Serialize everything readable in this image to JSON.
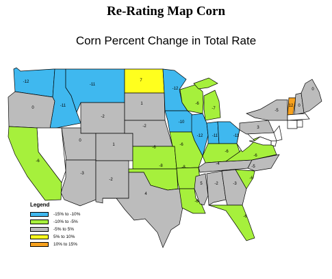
{
  "header": {
    "title": "Re-Rating Map Corn",
    "subtitle": "Corn Percent Change in Total Rate"
  },
  "legend": {
    "title": "Legend",
    "items": [
      {
        "label": "-15% to -10%",
        "color": "#3fb8ef"
      },
      {
        "label": "-10% to -5%",
        "color": "#a6f03c"
      },
      {
        "label": "-5% to 5%",
        "color": "#bcbcbc"
      },
      {
        "label": "5% to 10%",
        "color": "#ffff1e"
      },
      {
        "label": "10% to 15%",
        "color": "#f7a11e"
      }
    ]
  },
  "colors": {
    "no_data": "#ffffff"
  },
  "states": [
    {
      "code": "WA",
      "label": "-12",
      "value": -12
    },
    {
      "code": "OR",
      "label": "0",
      "value": 0
    },
    {
      "code": "ID",
      "label": "-11",
      "value": -11
    },
    {
      "code": "MT",
      "label": "-11",
      "value": -11
    },
    {
      "code": "WY",
      "label": "-2",
      "value": -2
    },
    {
      "code": "NV",
      "label": "",
      "value": null
    },
    {
      "code": "CA",
      "label": "-6",
      "value": -6
    },
    {
      "code": "UT",
      "label": "0",
      "value": 0
    },
    {
      "code": "CO",
      "label": "1",
      "value": 1
    },
    {
      "code": "AZ",
      "label": "-3",
      "value": -3
    },
    {
      "code": "NM",
      "label": "-2",
      "value": -2
    },
    {
      "code": "ND",
      "label": "7",
      "value": 7
    },
    {
      "code": "SD",
      "label": "1",
      "value": 1
    },
    {
      "code": "NE",
      "label": "-2",
      "value": -2
    },
    {
      "code": "KS",
      "label": "-6",
      "value": -6
    },
    {
      "code": "OK",
      "label": "-8",
      "value": -8
    },
    {
      "code": "TX",
      "label": "4",
      "value": 4
    },
    {
      "code": "MN",
      "label": "-12",
      "value": -12
    },
    {
      "code": "IA",
      "label": "-10",
      "value": -10
    },
    {
      "code": "MO",
      "label": "-6",
      "value": -6
    },
    {
      "code": "AR",
      "label": "-8",
      "value": -8
    },
    {
      "code": "LA",
      "label": "-6",
      "value": -6
    },
    {
      "code": "WI",
      "label": "-6",
      "value": -6
    },
    {
      "code": "IL",
      "label": "-12",
      "value": -12
    },
    {
      "code": "MI",
      "label": "-7",
      "value": -7
    },
    {
      "code": "IN",
      "label": "-11",
      "value": -11
    },
    {
      "code": "OH",
      "label": "-11",
      "value": -11
    },
    {
      "code": "KY",
      "label": "-6",
      "value": -6
    },
    {
      "code": "TN",
      "label": "-4",
      "value": -4
    },
    {
      "code": "MS",
      "label": "5",
      "value": 5
    },
    {
      "code": "AL",
      "label": "-2",
      "value": -2
    },
    {
      "code": "GA",
      "label": "-3",
      "value": -3
    },
    {
      "code": "FL",
      "label": "-6",
      "value": -6
    },
    {
      "code": "SC",
      "label": "-6",
      "value": -6
    },
    {
      "code": "NC",
      "label": "-5",
      "value": -5
    },
    {
      "code": "VA",
      "label": "-6",
      "value": -6
    },
    {
      "code": "WV",
      "label": "",
      "value": null
    },
    {
      "code": "PA",
      "label": "3",
      "value": 3
    },
    {
      "code": "NY",
      "label": "-5",
      "value": -5
    },
    {
      "code": "VT",
      "label": "12",
      "value": 12
    },
    {
      "code": "NH",
      "label": "0",
      "value": 0
    },
    {
      "code": "ME",
      "label": "0",
      "value": 0
    },
    {
      "code": "MA",
      "label": "",
      "value": null
    },
    {
      "code": "CT",
      "label": "",
      "value": null
    },
    {
      "code": "RI",
      "label": "",
      "value": null
    },
    {
      "code": "NJ",
      "label": "",
      "value": null
    },
    {
      "code": "DE",
      "label": "",
      "value": null
    },
    {
      "code": "MD",
      "label": "",
      "value": null
    }
  ]
}
